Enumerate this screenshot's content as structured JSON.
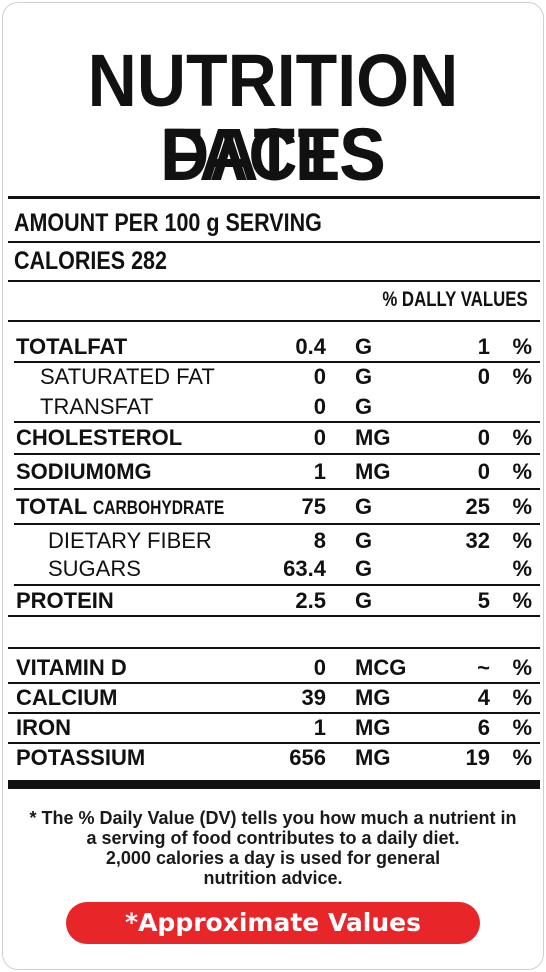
{
  "title": {
    "line1": "NUTRITION FACTS",
    "line2": "DATES"
  },
  "serving": "AMOUNT PER 100 g SERVING",
  "calories": "CALORIES 282",
  "daily_values_header": "% DALLY VALUES",
  "nutrients": [
    {
      "name": "TOTALFAT",
      "amount": "0.4",
      "unit": "G",
      "dv": "1",
      "pct": "%"
    },
    {
      "name": "SATURATED FAT",
      "amount": "0",
      "unit": "G",
      "dv": "0",
      "pct": "%"
    },
    {
      "name": "TRANSFAT",
      "amount": "0",
      "unit": "G",
      "dv": "",
      "pct": ""
    },
    {
      "name": "CHOLESTEROL",
      "amount": "0",
      "unit": "MG",
      "dv": "0",
      "pct": "%"
    },
    {
      "name": "SODIUM0MG",
      "amount": "1",
      "unit": "MG",
      "dv": "0",
      "pct": "%"
    },
    {
      "name_a": "TOTAL",
      "name_b": "CARBOHYDRATE",
      "amount": "75",
      "unit": "G",
      "dv": "25",
      "pct": "%"
    },
    {
      "name": "DIETARY FIBER",
      "amount": "8",
      "unit": "G",
      "dv": "32",
      "pct": "%"
    },
    {
      "name": "SUGARS",
      "amount": "63.4",
      "unit": "G",
      "dv": "",
      "pct": "%"
    },
    {
      "name": "PROTEIN",
      "amount": "2.5",
      "unit": "G",
      "dv": "5",
      "pct": "%"
    }
  ],
  "vitamins": [
    {
      "name": "VITAMIN D",
      "amount": "0",
      "unit": "MCG",
      "dv": "~",
      "pct": "%"
    },
    {
      "name": "CALCIUM",
      "amount": "39",
      "unit": "MG",
      "dv": "4",
      "pct": "%"
    },
    {
      "name": "IRON",
      "amount": "1",
      "unit": "MG",
      "dv": "6",
      "pct": "%"
    },
    {
      "name": "POTASSIUM",
      "amount": "656",
      "unit": "MG",
      "dv": "19",
      "pct": "%"
    }
  ],
  "footnote": [
    "* The % Daily Value (DV) tells you how much a nutrient in",
    "a serving of food contributes to a daily diet.",
    "2,000 calories a day is used for general",
    "nutrition advice."
  ],
  "approx_label": "*Approximate Values",
  "colors": {
    "approx_bg": "#e8262a",
    "text": "#111111"
  }
}
